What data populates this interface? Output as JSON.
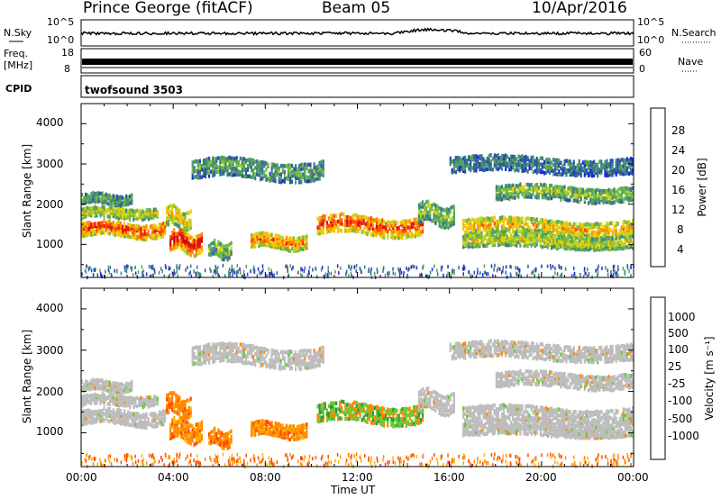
{
  "header": {
    "station": "Prince George (fitACF)",
    "beam": "Beam 05",
    "date": "10/Apr/2016"
  },
  "top_panels": {
    "nsky_label": "N.Sky",
    "nsky_ticks": [
      "10^5",
      "10^0"
    ],
    "nsearch_label": "N.Search",
    "nsearch_ticks": [
      "10^5",
      "10^0"
    ],
    "freq_label_1": "Freq.",
    "freq_label_2": "[MHz]",
    "freq_ticks": [
      "18",
      "8"
    ],
    "nave_label": "Nave",
    "nave_ticks": [
      "60",
      "0"
    ],
    "cpid_label": "CPID",
    "cpid_value": "twofsound 3503"
  },
  "chart_data": [
    {
      "type": "heatmap",
      "ylabel": "Slant Range [km]",
      "yticks": [
        "4000",
        "3000",
        "2000",
        "1000"
      ],
      "ylim": [
        180,
        4500
      ],
      "colorbar": {
        "label": "Power [dB]",
        "ticks": [
          "28",
          "24",
          "20",
          "16",
          "12",
          "8",
          "4"
        ],
        "range": [
          0,
          32
        ],
        "colors": [
          "#1e28d8",
          "#2c55a5",
          "#3c7a8c",
          "#54a060",
          "#78be40",
          "#c8d41c",
          "#ffc400",
          "#ff8c00",
          "#ff5000",
          "#e41414",
          "#c80a0a"
        ]
      }
    },
    {
      "type": "heatmap",
      "ylabel": "Slant Range [km]",
      "yticks": [
        "4000",
        "3000",
        "2000",
        "1000"
      ],
      "ylim": [
        180,
        4500
      ],
      "colorbar": {
        "label": "Velocity [m s⁻¹]",
        "ticks": [
          "1000",
          "500",
          "100",
          "25",
          "-25",
          "-100",
          "-500",
          "-1000"
        ],
        "range": [
          -1200,
          1200
        ],
        "colors": [
          "#ff0000",
          "#ff4a00",
          "#ff8800",
          "#ffb000",
          "#bdbdbd",
          "#bdbdbd",
          "#66cc33",
          "#2e9a3e",
          "#2060a8",
          "#1a2cc0"
        ]
      }
    }
  ],
  "xaxis": {
    "label": "Time UT",
    "ticks": [
      "00:00",
      "04:00",
      "08:00",
      "12:00",
      "16:00",
      "20:00",
      "00:00"
    ],
    "range_hours": [
      0,
      24
    ]
  }
}
